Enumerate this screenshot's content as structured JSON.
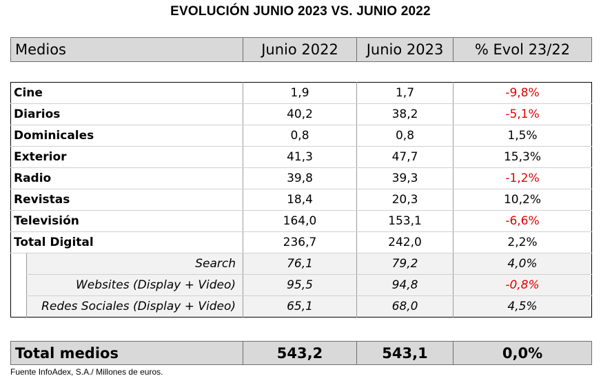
{
  "title": "EVOLUCIÓN JUNIO 2023 VS. JUNIO 2022",
  "header": [
    "Medios",
    "Junio 2022",
    "Junio 2023",
    "% Evol 23/22"
  ],
  "rows": [
    {
      "name": "Cine",
      "v2022": "1,9",
      "v2023": "1,7",
      "evol": "-9,8%",
      "negative": true
    },
    {
      "name": "Diarios",
      "v2022": "40,2",
      "v2023": "38,2",
      "evol": "-5,1%",
      "negative": true
    },
    {
      "name": "Dominicales",
      "v2022": "0,8",
      "v2023": "0,8",
      "evol": "1,5%",
      "negative": false
    },
    {
      "name": "Exterior",
      "v2022": "41,3",
      "v2023": "47,7",
      "evol": "15,3%",
      "negative": false
    },
    {
      "name": "Radio",
      "v2022": "39,8",
      "v2023": "39,3",
      "evol": "-1,2%",
      "negative": true
    },
    {
      "name": "Revistas",
      "v2022": "18,4",
      "v2023": "20,3",
      "evol": "10,2%",
      "negative": false
    },
    {
      "name": "Televisión",
      "v2022": "164,0",
      "v2023": "153,1",
      "evol": "-6,6%",
      "negative": true
    },
    {
      "name": "Total Digital",
      "v2022": "236,7",
      "v2023": "242,0",
      "evol": "2,2%",
      "negative": false
    }
  ],
  "subrows": [
    {
      "name": "Search",
      "v2022": "76,1",
      "v2023": "79,2",
      "evol": "4,0%",
      "negative": false
    },
    {
      "name": "Websites (Display + Video)",
      "v2022": "95,5",
      "v2023": "94,8",
      "evol": "-0,8%",
      "negative": true
    },
    {
      "name": "Redes Sociales (Display + Video)",
      "v2022": "65,1",
      "v2023": "68,0",
      "evol": "4,5%",
      "negative": false
    }
  ],
  "total": {
    "name": "Total medios",
    "v2022": "543,2",
    "v2023": "543,1",
    "evol": "0,0%"
  },
  "source": "Fuente InfoAdex, S.A./ Millones de euros.",
  "colors": {
    "negative": "#e00000",
    "header_bg": "#d9d9d9",
    "sub_bg": "#f2f2f2"
  }
}
